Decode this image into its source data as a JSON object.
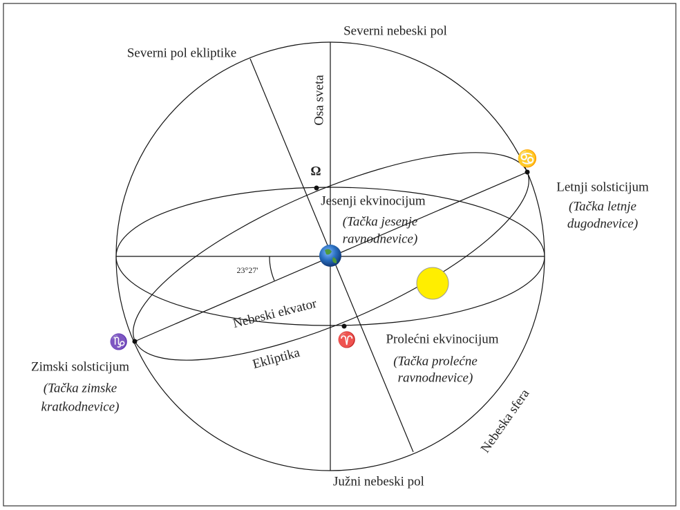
{
  "diagram": {
    "poles": {
      "north_celestial": "Severni nebeski pol",
      "south_celestial": "Južni nebeski pol",
      "north_ecliptic": "Severni pol ekliptike"
    },
    "axis": "Osa sveta",
    "angle": "23°27'",
    "autumn": {
      "symbol": "Ω",
      "name": "Jesenji ekvinocijum",
      "note": [
        "(Tačka jesenje",
        "ravnodnevice)"
      ]
    },
    "summer": {
      "symbol": "♋",
      "name": "Letnji solsticijum",
      "note": [
        "(Tačka letnje",
        "dugodnevice)"
      ]
    },
    "spring": {
      "symbol": "♈",
      "name": "Prolećni  ekvinocijum",
      "note": [
        "(Tačka prolećne",
        "ravnodnevice)"
      ]
    },
    "winter": {
      "symbol": "♑",
      "name": "Zimski solsticijum",
      "note": [
        "(Tačka zimske",
        "kratkodnevice)"
      ]
    },
    "equator": "Nebeski ekvator",
    "ecliptic": "Ekliptika",
    "sphere": "Nebeska sfera"
  }
}
